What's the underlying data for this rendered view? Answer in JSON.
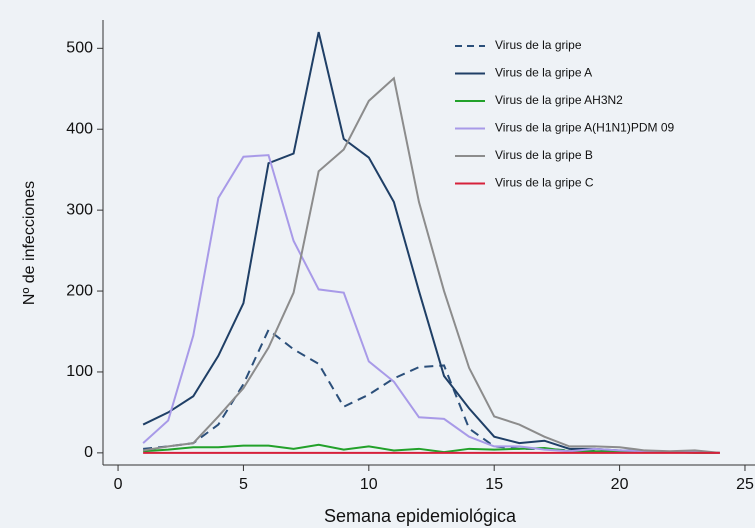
{
  "chart_data": {
    "type": "line",
    "xlabel": "Semana epidemiológica",
    "ylabel": "Nº de infecciones",
    "x": [
      1,
      2,
      3,
      4,
      5,
      6,
      7,
      8,
      9,
      10,
      11,
      12,
      13,
      14,
      15,
      16,
      17,
      18,
      19,
      20,
      21,
      22,
      23,
      24
    ],
    "series": [
      {
        "name": "Virus de la gripe",
        "color": "#2b4f7a",
        "style": "dashed",
        "values": [
          5,
          8,
          12,
          35,
          85,
          152,
          128,
          110,
          57,
          72,
          92,
          106,
          108,
          30,
          8,
          5,
          5,
          3,
          3,
          2,
          1,
          1,
          1,
          0
        ]
      },
      {
        "name": "Virus de la gripe A",
        "color": "#1f3f66",
        "style": "solid",
        "values": [
          35,
          50,
          70,
          120,
          185,
          358,
          370,
          520,
          388,
          365,
          310,
          200,
          95,
          55,
          20,
          12,
          15,
          5,
          5,
          3,
          2,
          1,
          1,
          0
        ]
      },
      {
        "name": "Virus de la gripe AH3N2",
        "color": "#22a12a",
        "style": "solid",
        "values": [
          2,
          4,
          7,
          7,
          9,
          9,
          5,
          10,
          4,
          8,
          3,
          5,
          1,
          5,
          4,
          5,
          6,
          2,
          2,
          1,
          1,
          1,
          0,
          0
        ]
      },
      {
        "name": "Virus de la gripe A(H1N1)PDM 09",
        "color": "#a89ae8",
        "style": "solid",
        "values": [
          12,
          40,
          145,
          315,
          366,
          368,
          262,
          202,
          198,
          113,
          88,
          44,
          42,
          20,
          8,
          8,
          4,
          2,
          5,
          3,
          2,
          1,
          1,
          0
        ]
      },
      {
        "name": "Virus de la gripe B",
        "color": "#8c8c8c",
        "style": "solid",
        "values": [
          3,
          8,
          12,
          45,
          80,
          130,
          198,
          348,
          375,
          435,
          463,
          310,
          200,
          105,
          45,
          35,
          20,
          8,
          8,
          7,
          3,
          2,
          3,
          0
        ]
      },
      {
        "name": "Virus de la gripe C",
        "color": "#d6213b",
        "style": "solid",
        "values": [
          0,
          0,
          0,
          0,
          0,
          0,
          0,
          0,
          0,
          0,
          0,
          0,
          0,
          0,
          0,
          0,
          0,
          0,
          0,
          0,
          0,
          0,
          0,
          0
        ]
      }
    ],
    "xlim": [
      -0.6,
      25.4
    ],
    "xticks": [
      0,
      5,
      10,
      15,
      20,
      25
    ],
    "ylim": [
      -15,
      535
    ],
    "yticks": [
      0,
      100,
      200,
      300,
      400,
      500
    ],
    "legend": "top-right"
  }
}
